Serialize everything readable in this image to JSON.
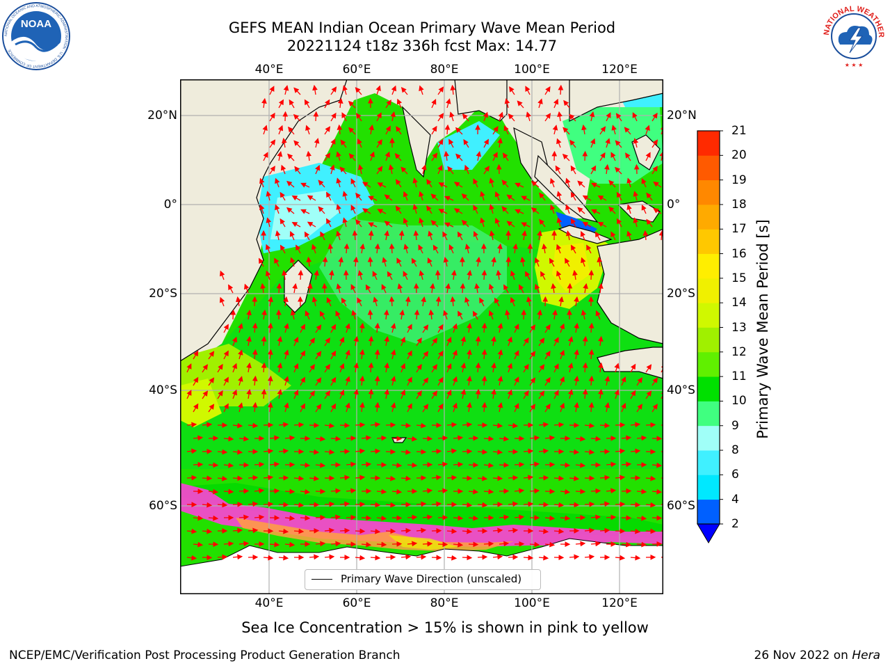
{
  "header": {
    "title_line1": "GEFS MEAN Indian Ocean Primary Wave Mean Period",
    "title_line2": "20221124 t18z 336h fcst   Max: 14.77"
  },
  "logos": {
    "noaa_text": "NOAA",
    "noaa_ring_text": "NATIONAL OCEANIC AND ATMOSPHERIC ADMINISTRATION · U.S. DEPARTMENT OF COMMERCE",
    "nws_ring_text": "NATIONAL WEATHER SERVICE"
  },
  "map": {
    "lon_ticks": [
      "40°E",
      "60°E",
      "80°E",
      "100°E",
      "120°E"
    ],
    "lat_ticks": [
      "20°N",
      "0°",
      "20°S",
      "40°S",
      "60°S"
    ],
    "colors": {
      "land": "#efecdc",
      "arrow": "#ff0000",
      "ice": "#ff40d8"
    }
  },
  "legend": {
    "label": "Primary Wave Direction (unscaled)"
  },
  "colorbar": {
    "title": "Primary Wave Mean Period [s]",
    "levels": [
      "2",
      "4",
      "6",
      "8",
      "9",
      "10",
      "11",
      "12",
      "13",
      "14",
      "15",
      "16",
      "17",
      "18",
      "19",
      "20",
      "21"
    ],
    "colors": [
      "#0060ff",
      "#00e8ff",
      "#40f0ff",
      "#a0fff8",
      "#40ff80",
      "#00e000",
      "#60f000",
      "#a0f000",
      "#d0f800",
      "#f0f000",
      "#ffee00",
      "#ffc800",
      "#ffaa00",
      "#ff8800",
      "#ff5a00",
      "#ff2a00"
    ],
    "under_color": "#0000ff"
  },
  "notes": {
    "ice_note": "Sea Ice Concentration > 15% is shown in pink to yellow",
    "footer_left": "NCEP/EMC/Verification Post Processing Product Generation Branch",
    "footer_date": "26 Nov 2022 on",
    "footer_machine": "Hera"
  }
}
